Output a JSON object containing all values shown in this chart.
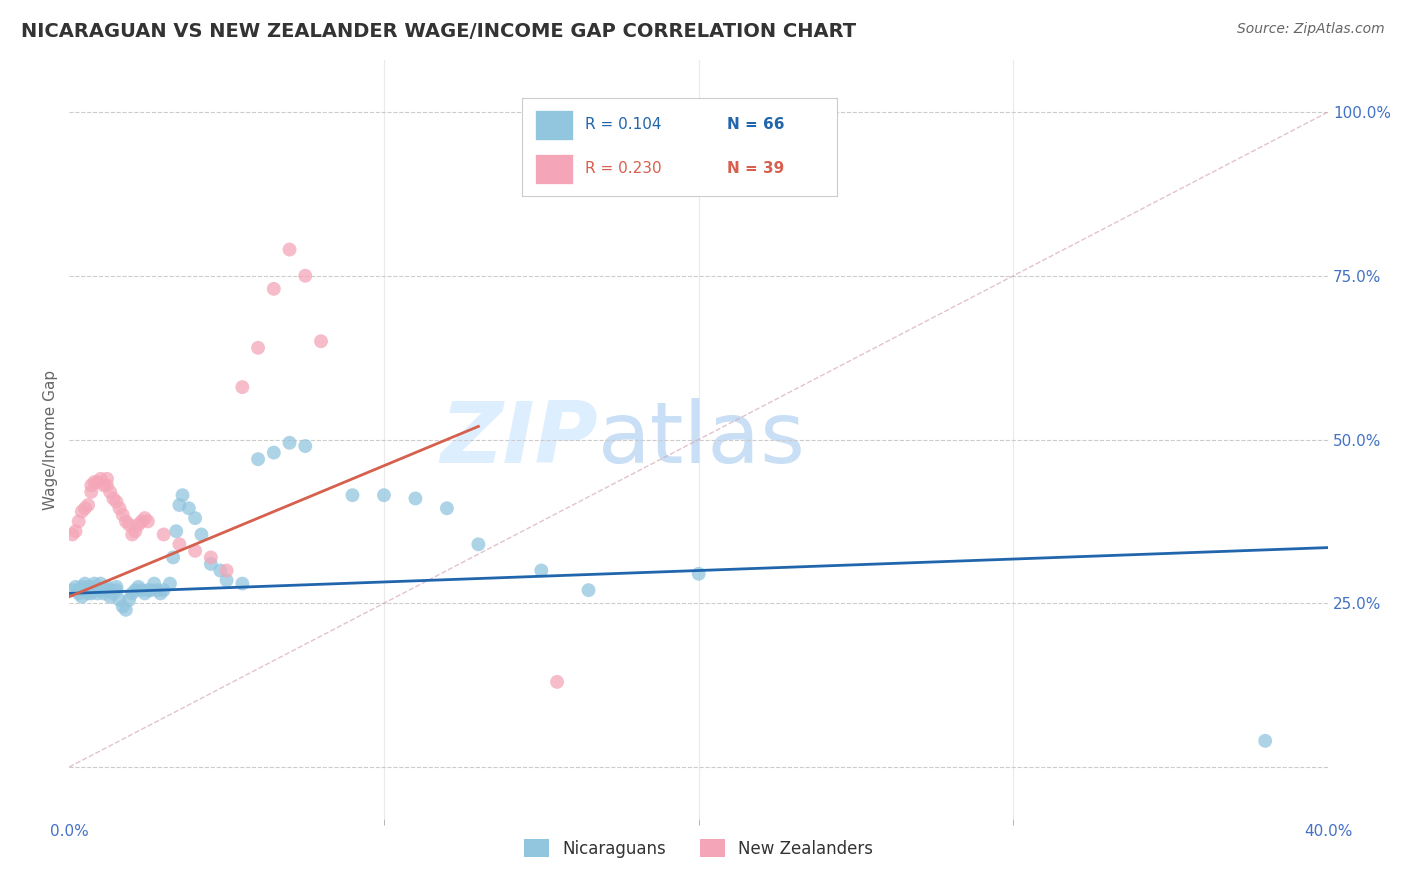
{
  "title": "NICARAGUAN VS NEW ZEALANDER WAGE/INCOME GAP CORRELATION CHART",
  "source": "Source: ZipAtlas.com",
  "ylabel": "Wage/Income Gap",
  "xlabel": "",
  "watermark_zip": "ZIP",
  "watermark_atlas": "atlas",
  "xlim": [
    0.0,
    0.4
  ],
  "ylim": [
    -0.08,
    1.08
  ],
  "xticks": [
    0.0,
    0.4
  ],
  "xtick_labels": [
    "0.0%",
    "40.0%"
  ],
  "xticks_minor": [
    0.1,
    0.2,
    0.3
  ],
  "yticks_right": [
    0.0,
    0.25,
    0.5,
    0.75,
    1.0
  ],
  "ytick_labels_right": [
    "",
    "25.0%",
    "50.0%",
    "75.0%",
    "100.0%"
  ],
  "blue_color": "#92c5de",
  "pink_color": "#f4a6b8",
  "trend_blue_color": "#2166ac",
  "trend_pink_color": "#d6604d",
  "diag_color": "#d6aab8",
  "legend_blue_label": "Nicaraguans",
  "legend_pink_label": "New Zealanders",
  "r_blue": "0.104",
  "n_blue": "66",
  "r_pink": "0.230",
  "n_pink": "39",
  "blue_scatter_x": [
    0.001,
    0.002,
    0.003,
    0.003,
    0.004,
    0.004,
    0.005,
    0.005,
    0.006,
    0.006,
    0.007,
    0.007,
    0.008,
    0.008,
    0.009,
    0.009,
    0.01,
    0.01,
    0.011,
    0.012,
    0.012,
    0.013,
    0.013,
    0.014,
    0.015,
    0.015,
    0.016,
    0.017,
    0.018,
    0.019,
    0.02,
    0.021,
    0.022,
    0.023,
    0.024,
    0.025,
    0.026,
    0.027,
    0.028,
    0.029,
    0.03,
    0.032,
    0.033,
    0.034,
    0.035,
    0.036,
    0.038,
    0.04,
    0.042,
    0.045,
    0.048,
    0.05,
    0.055,
    0.06,
    0.065,
    0.07,
    0.075,
    0.09,
    0.1,
    0.11,
    0.12,
    0.13,
    0.15,
    0.165,
    0.2,
    0.38
  ],
  "blue_scatter_y": [
    0.27,
    0.275,
    0.265,
    0.27,
    0.26,
    0.275,
    0.28,
    0.27,
    0.265,
    0.275,
    0.27,
    0.265,
    0.275,
    0.28,
    0.265,
    0.27,
    0.28,
    0.27,
    0.265,
    0.275,
    0.27,
    0.26,
    0.27,
    0.265,
    0.27,
    0.275,
    0.255,
    0.245,
    0.24,
    0.255,
    0.265,
    0.27,
    0.275,
    0.27,
    0.265,
    0.27,
    0.27,
    0.28,
    0.27,
    0.265,
    0.27,
    0.28,
    0.32,
    0.36,
    0.4,
    0.415,
    0.395,
    0.38,
    0.355,
    0.31,
    0.3,
    0.285,
    0.28,
    0.47,
    0.48,
    0.495,
    0.49,
    0.415,
    0.415,
    0.41,
    0.395,
    0.34,
    0.3,
    0.27,
    0.295,
    0.04
  ],
  "pink_scatter_x": [
    0.001,
    0.002,
    0.003,
    0.004,
    0.005,
    0.006,
    0.007,
    0.007,
    0.008,
    0.009,
    0.01,
    0.011,
    0.012,
    0.012,
    0.013,
    0.014,
    0.015,
    0.016,
    0.017,
    0.018,
    0.019,
    0.02,
    0.021,
    0.022,
    0.023,
    0.024,
    0.025,
    0.03,
    0.035,
    0.04,
    0.045,
    0.05,
    0.055,
    0.06,
    0.065,
    0.07,
    0.075,
    0.08,
    0.155
  ],
  "pink_scatter_y": [
    0.355,
    0.36,
    0.375,
    0.39,
    0.395,
    0.4,
    0.42,
    0.43,
    0.435,
    0.435,
    0.44,
    0.43,
    0.43,
    0.44,
    0.42,
    0.41,
    0.405,
    0.395,
    0.385,
    0.375,
    0.37,
    0.355,
    0.36,
    0.37,
    0.375,
    0.38,
    0.375,
    0.355,
    0.34,
    0.33,
    0.32,
    0.3,
    0.58,
    0.64,
    0.73,
    0.79,
    0.75,
    0.65,
    0.13
  ],
  "blue_trend_x": [
    0.0,
    0.4
  ],
  "blue_trend_y": [
    0.265,
    0.335
  ],
  "pink_trend_x": [
    0.0,
    0.13
  ],
  "pink_trend_y": [
    0.26,
    0.52
  ],
  "diag_line_x": [
    0.0,
    0.4
  ],
  "diag_line_y": [
    0.0,
    1.0
  ],
  "grid_color": "#cccccc",
  "right_axis_color": "#4472c4",
  "title_fontsize": 14,
  "source_fontsize": 10,
  "tick_fontsize": 11,
  "ylabel_fontsize": 11,
  "watermark_fontsize_zip": 62,
  "watermark_fontsize_atlas": 62,
  "watermark_color": "#ddeeff"
}
